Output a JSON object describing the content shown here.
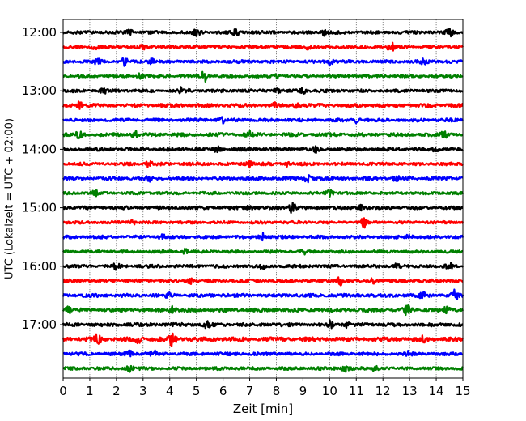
{
  "chart_data": {
    "type": "line",
    "subtype": "helicorder",
    "xlabel": "Zeit  [min]",
    "ylabel": "UTC (Lokalzeit = UTC + 02:00)",
    "xlim": [
      0,
      15
    ],
    "x_ticks": [
      0,
      1,
      2,
      3,
      4,
      5,
      6,
      7,
      8,
      9,
      10,
      11,
      12,
      13,
      14,
      15
    ],
    "x_tick_labels": [
      "0",
      "1",
      "2",
      "3",
      "4",
      "5",
      "6",
      "7",
      "8",
      "9",
      "10",
      "11",
      "12",
      "13",
      "14",
      "15"
    ],
    "x_grid": true,
    "x_grid_style": "dotted",
    "y_tick_labels": [
      "12:00",
      "13:00",
      "14:00",
      "15:00",
      "16:00",
      "17:00"
    ],
    "trace_interval_min": 15,
    "trace_colors": [
      "#000000",
      "#ff0000",
      "#0000ff",
      "#008000"
    ],
    "traces": [
      {
        "start": "12:00",
        "color": "#000000",
        "amp": 1.0,
        "events": [
          [
            2.5,
            3
          ],
          [
            5.0,
            5
          ],
          [
            6.5,
            3
          ],
          [
            9.8,
            3
          ],
          [
            14.5,
            4
          ]
        ]
      },
      {
        "start": "12:15",
        "color": "#ff0000",
        "amp": 0.9,
        "events": [
          [
            1.2,
            3
          ],
          [
            3.0,
            2
          ],
          [
            9.2,
            3
          ],
          [
            12.3,
            5
          ]
        ]
      },
      {
        "start": "12:30",
        "color": "#0000ff",
        "amp": 1.0,
        "events": [
          [
            1.3,
            3
          ],
          [
            2.3,
            4
          ],
          [
            3.3,
            3
          ],
          [
            10.0,
            4
          ],
          [
            13.5,
            3
          ]
        ]
      },
      {
        "start": "12:45",
        "color": "#008000",
        "amp": 0.9,
        "events": [
          [
            2.9,
            3
          ],
          [
            5.3,
            6
          ],
          [
            8.0,
            2
          ]
        ]
      },
      {
        "start": "13:00",
        "color": "#000000",
        "amp": 1.0,
        "events": [
          [
            1.5,
            3
          ],
          [
            4.4,
            3
          ],
          [
            4.7,
            4
          ],
          [
            8.0,
            4
          ],
          [
            9.0,
            3
          ]
        ]
      },
      {
        "start": "13:15",
        "color": "#ff0000",
        "amp": 1.1,
        "events": [
          [
            0.6,
            4
          ],
          [
            8.0,
            3
          ],
          [
            8.7,
            3
          ]
        ]
      },
      {
        "start": "13:30",
        "color": "#0000ff",
        "amp": 1.0,
        "events": [
          [
            6.0,
            3
          ],
          [
            11.0,
            3
          ]
        ]
      },
      {
        "start": "13:45",
        "color": "#008000",
        "amp": 1.1,
        "events": [
          [
            0.6,
            3
          ],
          [
            2.7,
            4
          ],
          [
            7.0,
            4
          ],
          [
            14.3,
            3
          ]
        ]
      },
      {
        "start": "14:00",
        "color": "#000000",
        "amp": 1.0,
        "events": [
          [
            5.8,
            3
          ],
          [
            9.5,
            3
          ],
          [
            14.0,
            3
          ]
        ]
      },
      {
        "start": "14:15",
        "color": "#ff0000",
        "amp": 1.0,
        "events": [
          [
            3.2,
            3
          ],
          [
            7.0,
            3
          ],
          [
            8.4,
            3
          ]
        ]
      },
      {
        "start": "14:30",
        "color": "#0000ff",
        "amp": 1.0,
        "events": [
          [
            3.2,
            3
          ],
          [
            9.2,
            5
          ],
          [
            12.5,
            3
          ]
        ]
      },
      {
        "start": "14:45",
        "color": "#008000",
        "amp": 0.9,
        "events": [
          [
            1.2,
            3
          ],
          [
            10.0,
            3
          ]
        ]
      },
      {
        "start": "15:00",
        "color": "#000000",
        "amp": 1.0,
        "events": [
          [
            7.0,
            3
          ],
          [
            8.6,
            6
          ],
          [
            11.2,
            3
          ]
        ]
      },
      {
        "start": "15:15",
        "color": "#ff0000",
        "amp": 0.9,
        "events": [
          [
            2.6,
            3
          ],
          [
            11.3,
            5
          ]
        ]
      },
      {
        "start": "15:30",
        "color": "#0000ff",
        "amp": 1.0,
        "events": [
          [
            3.7,
            3
          ],
          [
            7.5,
            4
          ],
          [
            13.0,
            3
          ]
        ]
      },
      {
        "start": "15:45",
        "color": "#008000",
        "amp": 0.9,
        "events": [
          [
            4.6,
            3
          ],
          [
            9.0,
            3
          ]
        ]
      },
      {
        "start": "16:00",
        "color": "#000000",
        "amp": 1.0,
        "events": [
          [
            2.0,
            3
          ],
          [
            7.5,
            3
          ],
          [
            12.5,
            3
          ],
          [
            14.5,
            4
          ]
        ]
      },
      {
        "start": "16:15",
        "color": "#ff0000",
        "amp": 1.0,
        "events": [
          [
            4.8,
            3
          ],
          [
            10.4,
            5
          ],
          [
            11.6,
            3
          ]
        ]
      },
      {
        "start": "16:30",
        "color": "#0000ff",
        "amp": 1.1,
        "events": [
          [
            4.0,
            3
          ],
          [
            13.5,
            3
          ],
          [
            14.7,
            6
          ]
        ]
      },
      {
        "start": "16:45",
        "color": "#008000",
        "amp": 1.1,
        "events": [
          [
            0.2,
            3
          ],
          [
            4.1,
            4
          ],
          [
            12.9,
            5
          ],
          [
            14.4,
            3
          ]
        ]
      },
      {
        "start": "17:00",
        "color": "#000000",
        "amp": 1.1,
        "events": [
          [
            5.4,
            3
          ],
          [
            10.0,
            4
          ],
          [
            10.6,
            3
          ]
        ]
      },
      {
        "start": "17:15",
        "color": "#ff0000",
        "amp": 1.3,
        "events": [
          [
            1.3,
            5
          ],
          [
            2.8,
            4
          ],
          [
            4.1,
            7
          ],
          [
            13.5,
            3
          ]
        ]
      },
      {
        "start": "17:30",
        "color": "#0000ff",
        "amp": 1.0,
        "events": [
          [
            2.5,
            3
          ],
          [
            3.4,
            3
          ],
          [
            13.0,
            3
          ]
        ]
      },
      {
        "start": "17:45",
        "color": "#008000",
        "amp": 1.0,
        "events": [
          [
            2.5,
            3
          ],
          [
            10.6,
            4
          ],
          [
            11.7,
            3
          ]
        ]
      }
    ]
  }
}
